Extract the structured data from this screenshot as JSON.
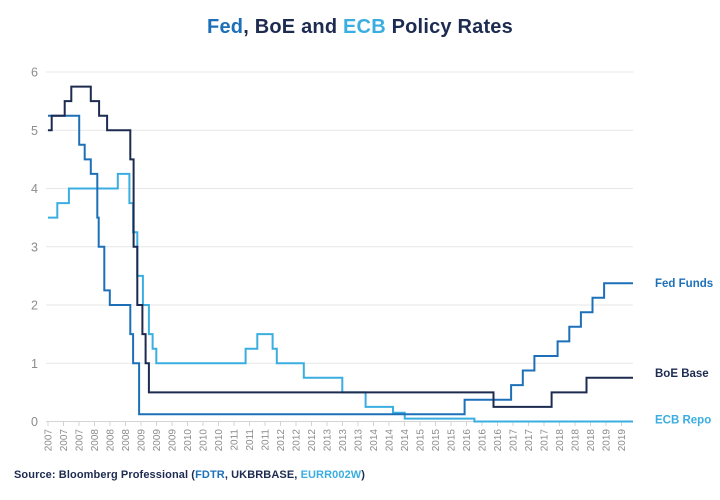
{
  "title": {
    "parts": [
      {
        "text": "Fed",
        "color": "fed"
      },
      {
        "text": ", BoE and ",
        "color": "navy"
      },
      {
        "text": "ECB",
        "color": "ecb"
      },
      {
        "text": " Policy Rates",
        "color": "navy"
      }
    ]
  },
  "source": {
    "parts": [
      {
        "text": "Source: Bloomberg Professional (",
        "color": "navy"
      },
      {
        "text": "FDTR",
        "color": "fed"
      },
      {
        "text": ", UKBRBASE, ",
        "color": "navy"
      },
      {
        "text": "EURR002W",
        "color": "ecb"
      },
      {
        "text": ")",
        "color": "navy"
      }
    ]
  },
  "colors": {
    "fed": "#1d70b8",
    "navy": "#1d2b50",
    "ecb": "#3aaee0",
    "grid": "#e7e7e7",
    "axis": "#d4d4d4",
    "tick_text": "#8c8c8c",
    "background": "#ffffff"
  },
  "chart_data": {
    "type": "line",
    "step": true,
    "title": "Fed, BoE and ECB Policy Rates",
    "xlabel": "",
    "ylabel": "",
    "ylim": [
      0,
      6
    ],
    "y_ticks": [
      0,
      1,
      2,
      3,
      4,
      5,
      6
    ],
    "x_range_years": [
      2007,
      2019.6
    ],
    "x_tick_interval_months": 4,
    "x_tick_labels": [
      "2007",
      "2007",
      "2007",
      "2008",
      "2008",
      "2008",
      "2009",
      "2009",
      "2009",
      "2010",
      "2010",
      "2010",
      "2011",
      "2011",
      "2011",
      "2012",
      "2012",
      "2012",
      "2013",
      "2013",
      "2013",
      "2014",
      "2014",
      "2014",
      "2015",
      "2015",
      "2015",
      "2016",
      "2016",
      "2016",
      "2017",
      "2017",
      "2017",
      "2018",
      "2018",
      "2018",
      "2019",
      "2019"
    ],
    "grid": true,
    "legend_position": "right-of-line-ends",
    "series": [
      {
        "name": "ECB Repo",
        "color": "ecb",
        "points": [
          [
            2007.0,
            3.5
          ],
          [
            2007.2,
            3.75
          ],
          [
            2007.45,
            4.0
          ],
          [
            2008.5,
            4.25
          ],
          [
            2008.75,
            3.75
          ],
          [
            2008.83,
            3.25
          ],
          [
            2008.92,
            2.5
          ],
          [
            2009.04,
            2.0
          ],
          [
            2009.17,
            1.5
          ],
          [
            2009.25,
            1.25
          ],
          [
            2009.33,
            1.0
          ],
          [
            2011.25,
            1.25
          ],
          [
            2011.5,
            1.5
          ],
          [
            2011.83,
            1.25
          ],
          [
            2011.92,
            1.0
          ],
          [
            2012.5,
            0.75
          ],
          [
            2013.33,
            0.5
          ],
          [
            2013.83,
            0.25
          ],
          [
            2014.42,
            0.15
          ],
          [
            2014.67,
            0.05
          ],
          [
            2016.17,
            0.0
          ]
        ]
      },
      {
        "name": "Fed Funds",
        "color": "fed",
        "points": [
          [
            2007.0,
            5.25
          ],
          [
            2007.67,
            4.75
          ],
          [
            2007.79,
            4.5
          ],
          [
            2007.92,
            4.25
          ],
          [
            2008.06,
            3.5
          ],
          [
            2008.09,
            3.0
          ],
          [
            2008.21,
            2.25
          ],
          [
            2008.33,
            2.0
          ],
          [
            2008.77,
            1.5
          ],
          [
            2008.83,
            1.0
          ],
          [
            2008.96,
            0.125
          ],
          [
            2015.96,
            0.375
          ],
          [
            2016.96,
            0.625
          ],
          [
            2017.21,
            0.875
          ],
          [
            2017.46,
            1.125
          ],
          [
            2017.96,
            1.375
          ],
          [
            2018.21,
            1.625
          ],
          [
            2018.46,
            1.875
          ],
          [
            2018.71,
            2.125
          ],
          [
            2018.96,
            2.375
          ]
        ]
      },
      {
        "name": "BoE Base",
        "color": "navy",
        "points": [
          [
            2007.0,
            5.0
          ],
          [
            2007.08,
            5.25
          ],
          [
            2007.36,
            5.5
          ],
          [
            2007.5,
            5.75
          ],
          [
            2007.92,
            5.5
          ],
          [
            2008.1,
            5.25
          ],
          [
            2008.27,
            5.0
          ],
          [
            2008.77,
            4.5
          ],
          [
            2008.84,
            3.0
          ],
          [
            2008.92,
            2.0
          ],
          [
            2009.03,
            1.5
          ],
          [
            2009.1,
            1.0
          ],
          [
            2009.17,
            0.5
          ],
          [
            2016.58,
            0.25
          ],
          [
            2017.83,
            0.5
          ],
          [
            2018.58,
            0.75
          ]
        ]
      }
    ]
  }
}
